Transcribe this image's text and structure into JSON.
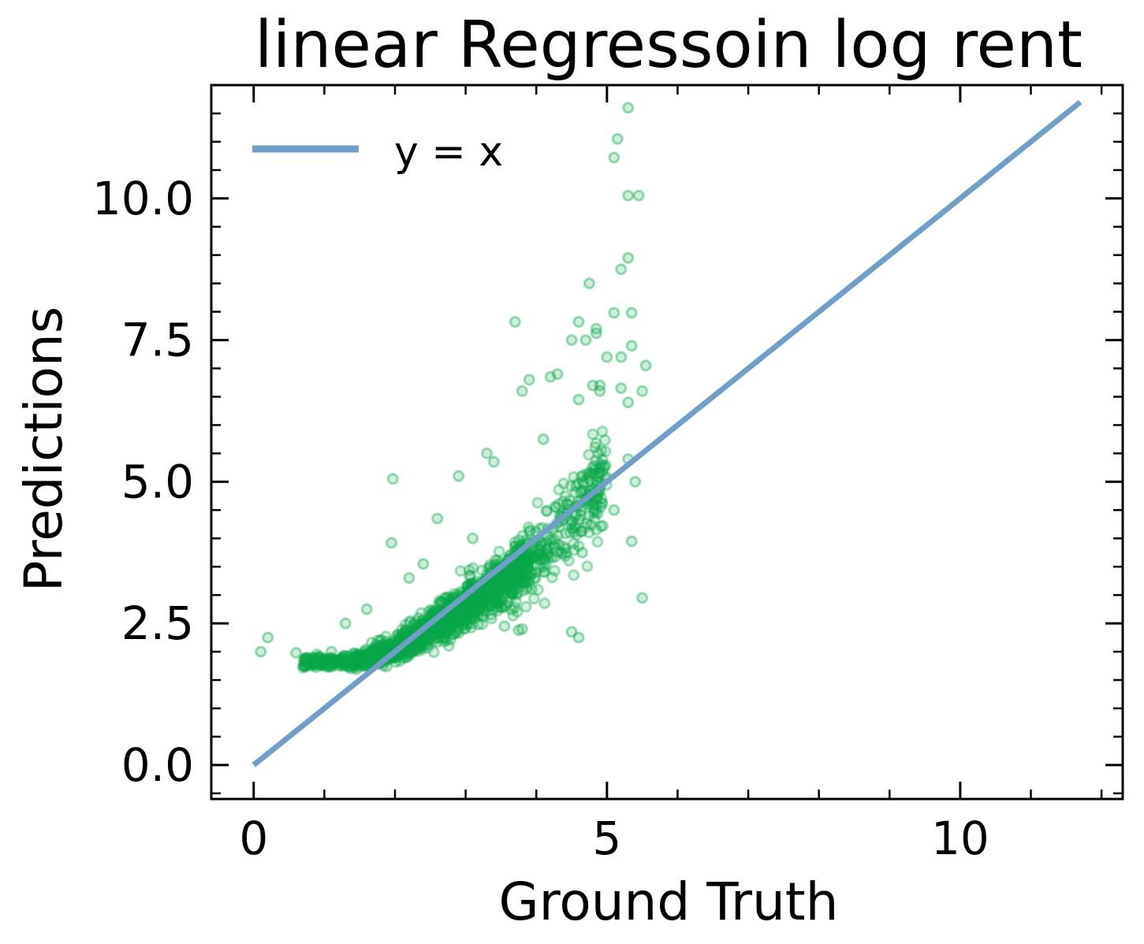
{
  "chart_data": {
    "type": "scatter",
    "title": "linear Regressoin log rent",
    "xlabel": "Ground Truth",
    "ylabel": "Predictions",
    "xlim": [
      -0.6,
      12.3
    ],
    "ylim": [
      -0.6,
      12.0
    ],
    "x_ticks": [
      0,
      5,
      10
    ],
    "x_tick_labels": [
      "0",
      "5",
      "10"
    ],
    "y_ticks": [
      0.0,
      2.5,
      5.0,
      7.5,
      10.0
    ],
    "y_tick_labels": [
      "0.0",
      "2.5",
      "5.0",
      "7.5",
      "10.0"
    ],
    "x_minor_step": 1,
    "y_minor_step": 0.5,
    "grid": false,
    "legend": {
      "position": "top-left",
      "entries": [
        "y = x"
      ]
    },
    "series": [
      {
        "name": "y = x",
        "kind": "line",
        "color": "#6f9ec8",
        "x": [
          0,
          11.7
        ],
        "y": [
          0,
          11.7
        ]
      },
      {
        "name": "predictions",
        "kind": "scatter",
        "color": "#0aa84a",
        "note": "dense cloud summarised by representative sample; outliers listed individually",
        "cloud_trend": {
          "x_range": [
            0.7,
            5.0
          ],
          "center": [
            [
              0.7,
              1.82
            ],
            [
              1.0,
              1.8
            ],
            [
              1.5,
              1.85
            ],
            [
              2.0,
              2.05
            ],
            [
              2.5,
              2.4
            ],
            [
              3.0,
              2.8
            ],
            [
              3.5,
              3.2
            ],
            [
              4.0,
              3.65
            ],
            [
              4.5,
              4.3
            ],
            [
              5.0,
              5.2
            ]
          ],
          "spread": [
            [
              0.7,
              0.08
            ],
            [
              1.5,
              0.12
            ],
            [
              2.5,
              0.28
            ],
            [
              3.5,
              0.45
            ],
            [
              4.5,
              0.7
            ],
            [
              5.0,
              0.9
            ]
          ]
        },
        "outliers": [
          [
            0.1,
            2.0
          ],
          [
            0.2,
            2.25
          ],
          [
            0.6,
            1.98
          ],
          [
            0.7,
            1.72
          ],
          [
            1.97,
            5.05
          ],
          [
            1.95,
            3.92
          ],
          [
            1.6,
            2.75
          ],
          [
            2.6,
            4.35
          ],
          [
            2.9,
            5.1
          ],
          [
            3.7,
            7.82
          ],
          [
            3.8,
            6.6
          ],
          [
            3.9,
            6.8
          ],
          [
            4.1,
            5.75
          ],
          [
            4.2,
            6.85
          ],
          [
            4.3,
            6.9
          ],
          [
            4.5,
            7.5
          ],
          [
            4.6,
            7.82
          ],
          [
            4.7,
            7.5
          ],
          [
            4.6,
            6.45
          ],
          [
            4.8,
            6.7
          ],
          [
            4.5,
            2.35
          ],
          [
            4.6,
            2.25
          ],
          [
            4.65,
            3.75
          ],
          [
            4.75,
            8.5
          ],
          [
            4.85,
            7.7
          ],
          [
            4.85,
            7.62
          ],
          [
            4.9,
            6.7
          ],
          [
            4.9,
            6.6
          ],
          [
            5.0,
            7.2
          ],
          [
            5.1,
            7.98
          ],
          [
            5.1,
            10.72
          ],
          [
            5.15,
            11.05
          ],
          [
            5.2,
            8.75
          ],
          [
            5.2,
            7.2
          ],
          [
            5.2,
            6.65
          ],
          [
            5.3,
            10.05
          ],
          [
            5.3,
            8.95
          ],
          [
            5.35,
            7.98
          ],
          [
            5.35,
            7.4
          ],
          [
            5.3,
            6.4
          ],
          [
            5.3,
            11.6
          ],
          [
            5.45,
            10.05
          ],
          [
            5.55,
            7.05
          ],
          [
            5.5,
            6.6
          ],
          [
            5.35,
            3.95
          ],
          [
            5.5,
            2.95
          ],
          [
            5.3,
            5.4
          ],
          [
            5.4,
            5.0
          ],
          [
            5.1,
            4.5
          ],
          [
            4.9,
            4.9
          ],
          [
            3.1,
            4.0
          ],
          [
            3.3,
            5.5
          ],
          [
            3.4,
            5.35
          ],
          [
            2.2,
            3.3
          ],
          [
            2.4,
            3.55
          ],
          [
            1.3,
            2.5
          ],
          [
            1.1,
            2.0
          ],
          [
            3.75,
            2.38
          ],
          [
            3.8,
            2.4
          ],
          [
            3.55,
            2.45
          ]
        ]
      }
    ]
  }
}
